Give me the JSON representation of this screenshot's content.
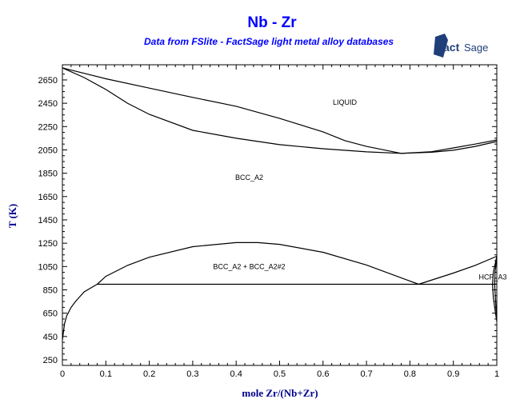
{
  "chart_data": {
    "type": "line",
    "title": "Nb - Zr",
    "subtitle": "Data from FSlite - FactSage light metal alloy databases",
    "logo_text": "FactSage",
    "xlabel": "mole Zr/(Nb+Zr)",
    "ylabel": "T (K)",
    "xlim": [
      0,
      1
    ],
    "ylim": [
      202,
      2780
    ],
    "xticks": [
      "0",
      "0.1",
      "0.2",
      "0.3",
      "0.4",
      "0.5",
      "0.6",
      "0.7",
      "0.8",
      "0.9",
      "1"
    ],
    "yticks": [
      "250",
      "450",
      "650",
      "850",
      "1050",
      "1250",
      "1450",
      "1650",
      "1850",
      "2050",
      "2250",
      "2450",
      "2650"
    ],
    "grid": false,
    "series": [
      {
        "name": "liquidus",
        "x": [
          0,
          0.1,
          0.2,
          0.3,
          0.4,
          0.5,
          0.6,
          0.65,
          0.7,
          0.78,
          0.85,
          0.9,
          0.95,
          1.0
        ],
        "y": [
          2753,
          2660,
          2580,
          2500,
          2424,
          2320,
          2205,
          2130,
          2080,
          2020,
          2035,
          2067,
          2100,
          2135
        ]
      },
      {
        "name": "solidus",
        "x": [
          0,
          0.05,
          0.1,
          0.15,
          0.2,
          0.3,
          0.4,
          0.5,
          0.6,
          0.7,
          0.78,
          0.85,
          0.9,
          0.95,
          1.0
        ],
        "y": [
          2753,
          2670,
          2568,
          2450,
          2355,
          2218,
          2150,
          2095,
          2060,
          2033,
          2020,
          2030,
          2047,
          2080,
          2122
        ]
      },
      {
        "name": "miscibility-gap",
        "x": [
          0.08,
          0.1,
          0.15,
          0.2,
          0.3,
          0.4,
          0.45,
          0.5,
          0.6,
          0.7,
          0.82
        ],
        "y": [
          898,
          966,
          1060,
          1130,
          1220,
          1255,
          1255,
          1240,
          1172,
          1063,
          898
        ]
      },
      {
        "name": "bcc-zr-solvus",
        "x": [
          0.82,
          0.9,
          0.95,
          1.0
        ],
        "y": [
          898,
          994,
          1060,
          1138
        ]
      },
      {
        "name": "nb-rich-solvus",
        "x": [
          0,
          0.005,
          0.01,
          0.02,
          0.03,
          0.05,
          0.08
        ],
        "y": [
          420,
          560,
          627,
          700,
          750,
          833,
          898
        ]
      },
      {
        "name": "eutectoid",
        "x": [
          0.08,
          1.0
        ],
        "y": [
          898,
          898
        ]
      },
      {
        "name": "hcp-boundary-left",
        "x": [
          1.0,
          0.992,
          0.99,
          0.992,
          0.997,
          1.0
        ],
        "y": [
          1138,
          1000,
          898,
          780,
          650,
          580
        ]
      },
      {
        "name": "hcp-boundary-right",
        "x": [
          1.0,
          0.996,
          0.995,
          0.997,
          1.0
        ],
        "y": [
          1138,
          1000,
          898,
          760,
          600
        ]
      }
    ],
    "annotations": [
      {
        "text": "LIQUID",
        "x": 0.65,
        "y": 2437
      },
      {
        "text": "BCC_A2",
        "x": 0.43,
        "y": 1793
      },
      {
        "text": "BCC_A2 + BCC_A2#2",
        "x": 0.43,
        "y": 1028
      },
      {
        "text": "HCP_A3",
        "x": 0.99,
        "y": 940
      }
    ]
  }
}
